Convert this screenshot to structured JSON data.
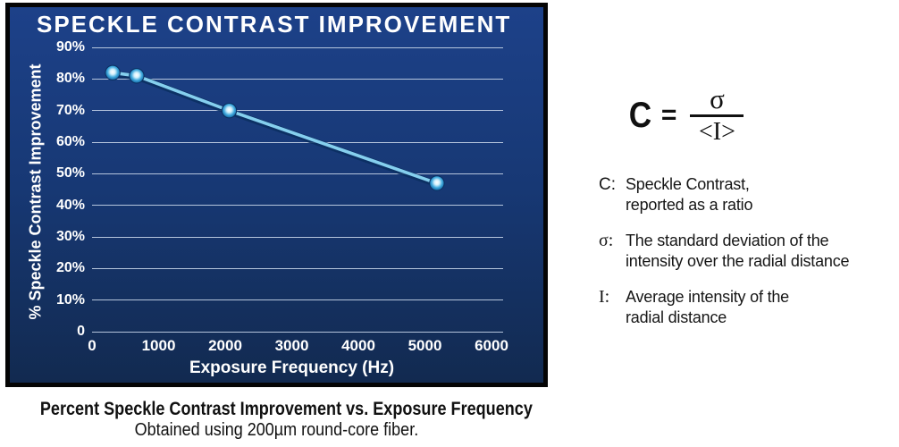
{
  "chart": {
    "title": "SPECKLE CONTRAST IMPROVEMENT",
    "xlabel": "Exposure Frequency (Hz)",
    "ylabel": "% Speckle Contrast Improvement"
  },
  "chart_data": {
    "type": "line",
    "title": "SPECKLE CONTRAST IMPROVEMENT",
    "xlabel": "Exposure Frequency (Hz)",
    "ylabel": "% Speckle Contrast Improvement",
    "x": [
      310,
      670,
      2060,
      5180
    ],
    "y": [
      82,
      81,
      70,
      47
    ],
    "xlim": [
      0,
      6000
    ],
    "ylim": [
      0,
      90
    ],
    "x_ticks": [
      0,
      1000,
      2000,
      3000,
      4000,
      5000,
      6000
    ],
    "y_ticks_percent": [
      90,
      80,
      70,
      60,
      50,
      40,
      30,
      20,
      10,
      0
    ],
    "y_tick_labels": [
      "90%",
      "80%",
      "70%",
      "60%",
      "50%",
      "40%",
      "30%",
      "20%",
      "10%",
      "0"
    ],
    "grid": "horizontal-only",
    "legend": "none",
    "series_name": "% Speckle Contrast Improvement",
    "marker_style": "glossy-sphere",
    "line_color": "#85cfee",
    "plot_background": "navy-gradient"
  },
  "formula": {
    "lhs": "C",
    "eq": "=",
    "numerator": "σ",
    "denominator": "<I>"
  },
  "definitions": [
    {
      "label": "C:",
      "lines": [
        "Speckle Contrast,",
        "reported as a ratio"
      ]
    },
    {
      "label": "σ:",
      "lines": [
        "The standard deviation of the",
        "intensity over the radial distance"
      ]
    },
    {
      "label": "I:",
      "lines": [
        "Average intensity of the",
        "radial distance"
      ]
    }
  ],
  "caption": {
    "line1": "Percent Speckle Contrast Improvement vs. Exposure Frequency",
    "line2": "Obtained using 200µm round-core fiber."
  },
  "colors": {
    "panel_top": "#1d4189",
    "panel_bottom": "#122a50",
    "grid": "#c3d1e6",
    "line": "#85cfee",
    "line_shadow": "#0a2f60",
    "marker_edge": "#0d3a6b",
    "text_light": "#ffffff",
    "text_dark": "#111111",
    "frame": "#050505"
  }
}
